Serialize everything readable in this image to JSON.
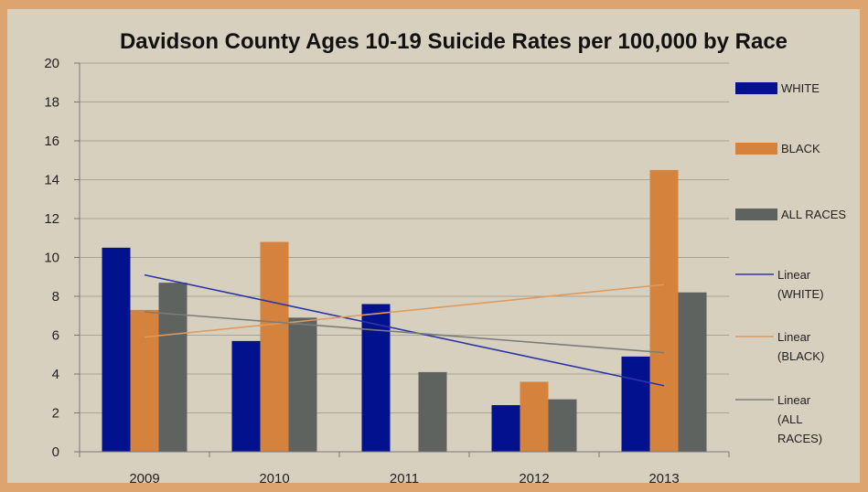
{
  "chart_data": {
    "type": "bar",
    "title": "Davidson County Ages 10-19 Suicide Rates per 100,000 by Race",
    "xlabel": "",
    "ylabel": "",
    "categories": [
      "2009",
      "2010",
      "2011",
      "2012",
      "2013"
    ],
    "ylim": [
      0,
      20
    ],
    "yticks": [
      0,
      2,
      4,
      6,
      8,
      10,
      12,
      14,
      16,
      18,
      20
    ],
    "grid": true,
    "legend_position": "right",
    "series": [
      {
        "name": "WHITE",
        "color": "#02128e",
        "values": [
          10.5,
          5.7,
          7.6,
          2.4,
          4.9
        ]
      },
      {
        "name": "BLACK",
        "color": "#d4823c",
        "values": [
          7.3,
          10.8,
          null,
          3.6,
          14.5
        ]
      },
      {
        "name": "ALL RACES",
        "color": "#5f6360",
        "values": [
          8.7,
          6.9,
          4.1,
          2.7,
          8.2
        ]
      }
    ],
    "trendlines": [
      {
        "name": "Linear (WHITE)",
        "legend_lines": [
          "Linear",
          "(WHITE)"
        ],
        "color": "#2a35a8",
        "start": 9.1,
        "end": 3.4
      },
      {
        "name": "Linear (BLACK)",
        "legend_lines": [
          "Linear",
          "(BLACK)"
        ],
        "color": "#dd9b60",
        "start": 5.9,
        "end": 8.6
      },
      {
        "name": "Linear (ALL RACES)",
        "legend_lines": [
          "Linear",
          "(ALL",
          "RACES)"
        ],
        "color": "#7a7c78",
        "start": 7.2,
        "end": 5.1
      }
    ]
  }
}
